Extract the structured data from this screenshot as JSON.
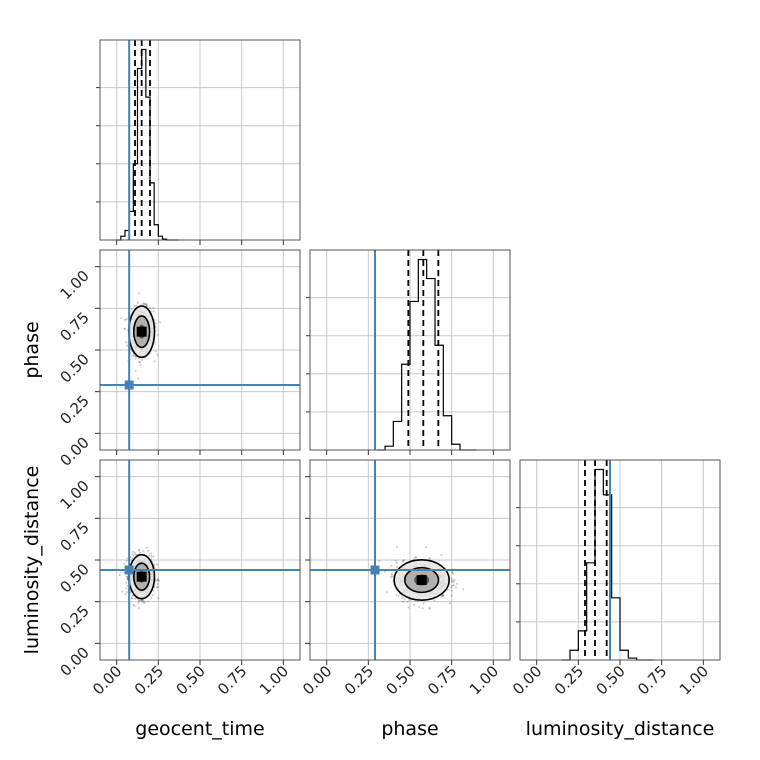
{
  "chart_data": {
    "type": "corner",
    "parameters": [
      "geocent_time",
      "phase",
      "luminosity_distance"
    ],
    "axis_labels": [
      "geocent_time",
      "phase",
      "luminosity_distance"
    ],
    "ticks": [
      0.0,
      0.25,
      0.5,
      0.75,
      1.0
    ],
    "tick_labels": [
      "0.00",
      "0.25",
      "0.50",
      "0.75",
      "1.00"
    ],
    "xlim": [
      -0.1,
      1.1
    ],
    "ylim": [
      -0.1,
      1.1
    ],
    "grid": true,
    "truths": [
      0.075,
      0.29,
      0.44
    ],
    "truth_color": "#4682b4",
    "line_color": "#000000",
    "histograms": [
      {
        "parameter": "geocent_time",
        "bin_edges": [
          0.0,
          0.025,
          0.05,
          0.075,
          0.1,
          0.125,
          0.15,
          0.175,
          0.2,
          0.225,
          0.25,
          0.275,
          0.3,
          0.325,
          0.35,
          0.375
        ],
        "counts": [
          0,
          0.02,
          0.05,
          0.15,
          0.4,
          0.9,
          1.0,
          0.75,
          0.3,
          0.08,
          0.02,
          0.005,
          0,
          0,
          0
        ],
        "quantiles": [
          0.11,
          0.15,
          0.2
        ]
      },
      {
        "parameter": "phase",
        "bin_edges": [
          0.3,
          0.35,
          0.4,
          0.45,
          0.5,
          0.55,
          0.6,
          0.65,
          0.7,
          0.75,
          0.8,
          0.85,
          0.9
        ],
        "counts": [
          0,
          0.02,
          0.15,
          0.45,
          0.78,
          1.0,
          0.9,
          0.55,
          0.18,
          0.03,
          0,
          0
        ],
        "quantiles": [
          0.49,
          0.58,
          0.67
        ]
      },
      {
        "parameter": "luminosity_distance",
        "bin_edges": [
          0.15,
          0.2,
          0.25,
          0.3,
          0.35,
          0.4,
          0.45,
          0.5,
          0.55,
          0.6,
          0.65,
          0.7
        ],
        "counts": [
          0,
          0.05,
          0.15,
          0.5,
          0.98,
          0.85,
          0.32,
          0.05,
          0.01,
          0,
          0
        ],
        "quantiles": [
          0.29,
          0.35,
          0.42
        ]
      }
    ],
    "scatter_panels": [
      {
        "x": "geocent_time",
        "y": "phase",
        "mean": [
          0.15,
          0.61
        ],
        "sd": [
          0.035,
          0.07
        ],
        "truth": [
          0.075,
          0.29
        ]
      },
      {
        "x": "geocent_time",
        "y": "luminosity_distance",
        "mean": [
          0.15,
          0.4
        ],
        "sd": [
          0.035,
          0.06
        ],
        "truth": [
          0.075,
          0.44
        ]
      },
      {
        "x": "phase",
        "y": "luminosity_distance",
        "mean": [
          0.57,
          0.38
        ],
        "sd": [
          0.075,
          0.055
        ],
        "truth": [
          0.29,
          0.44
        ]
      }
    ]
  }
}
